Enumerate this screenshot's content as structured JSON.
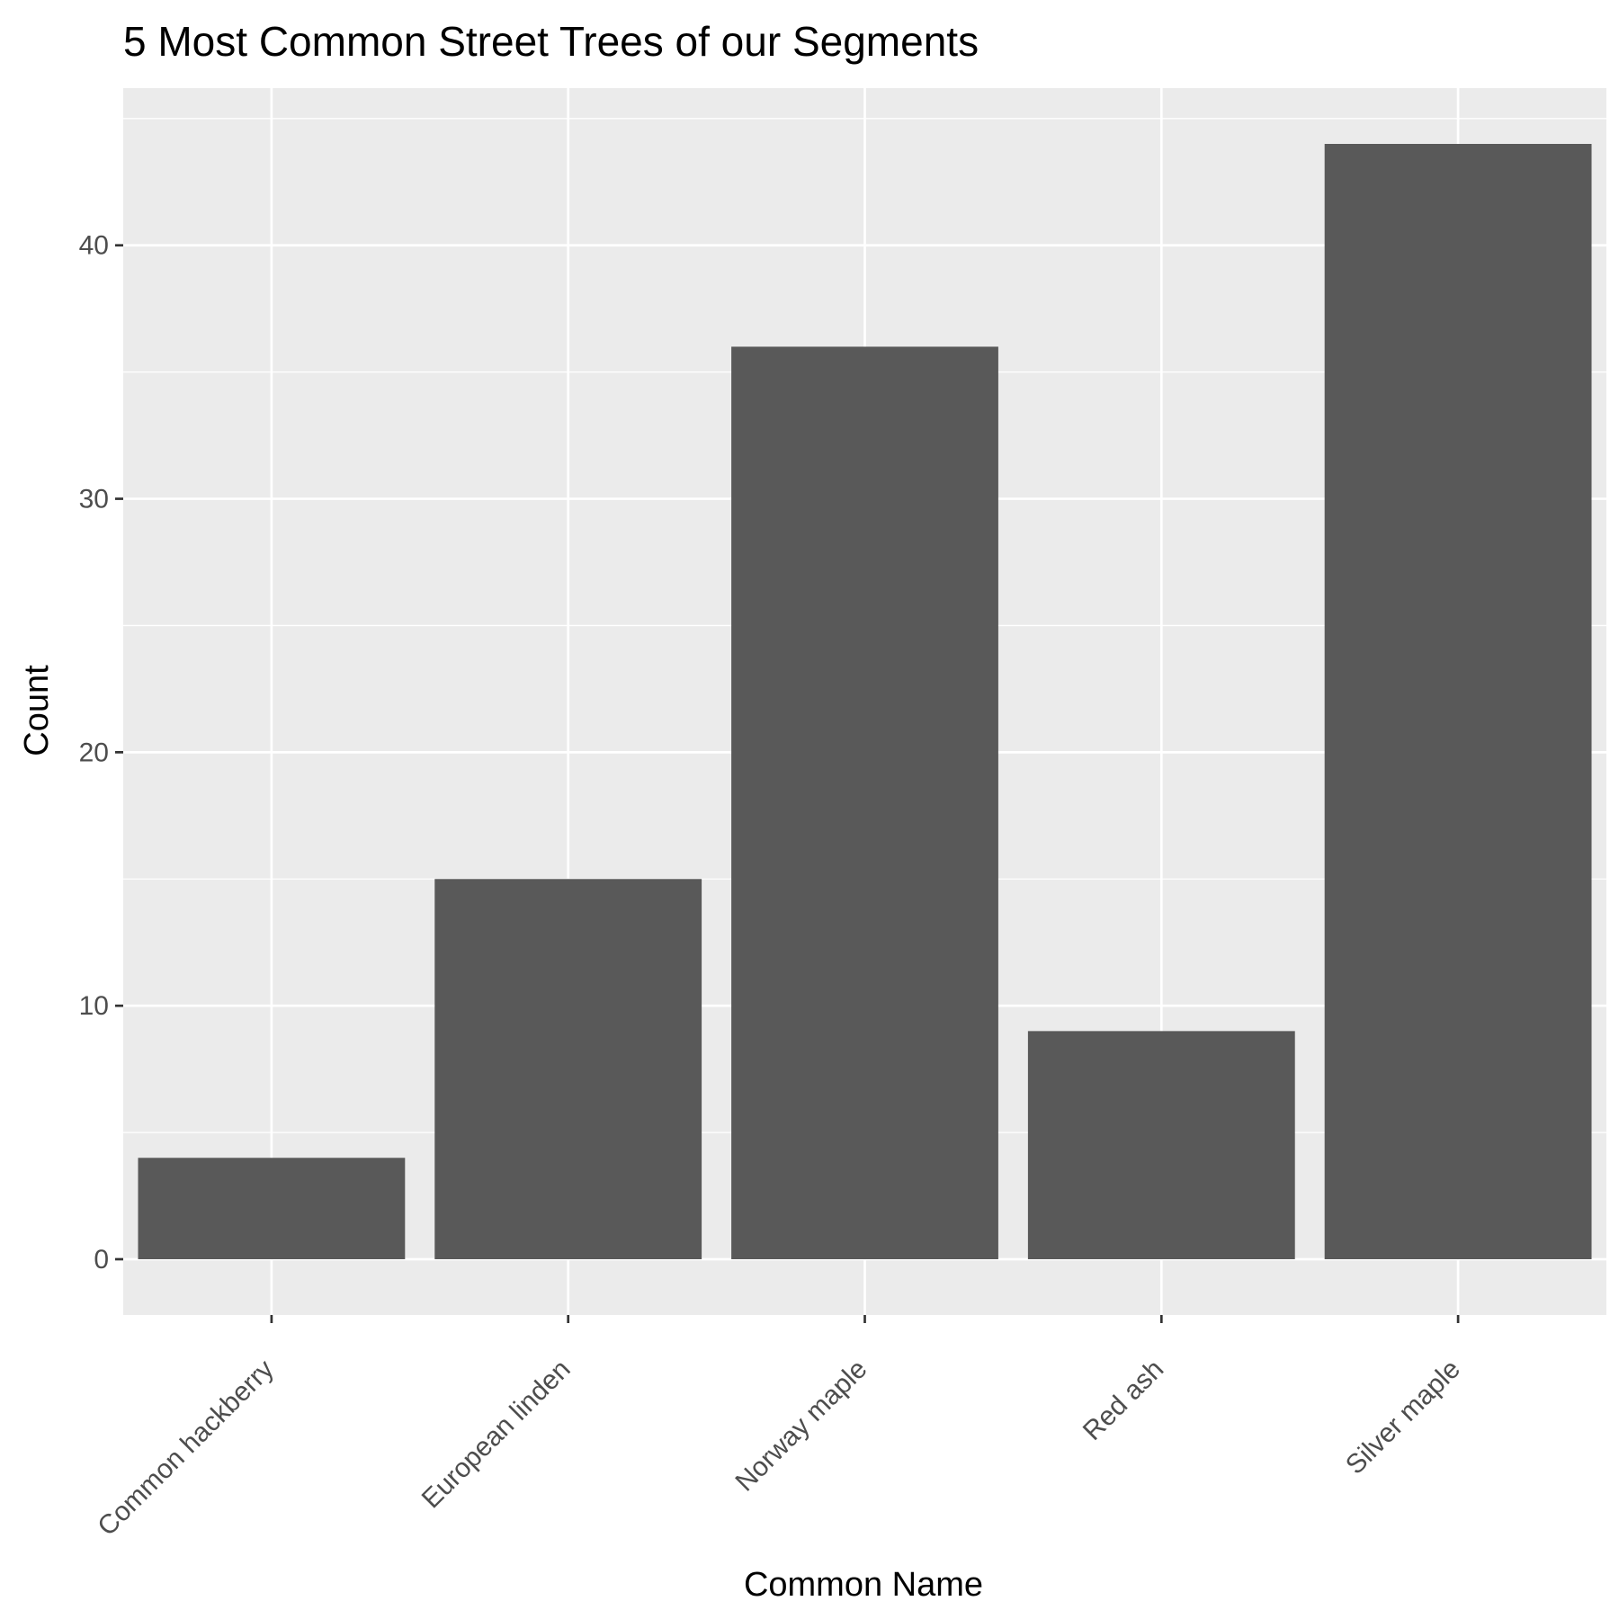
{
  "chart_data": {
    "type": "bar",
    "title": "5 Most Common Street Trees of our Segments",
    "xlabel": "Common Name",
    "ylabel": "Count",
    "categories": [
      "Common hackberry",
      "European linden",
      "Norway maple",
      "Red ash",
      "Silver maple"
    ],
    "values": [
      4,
      15,
      36,
      9,
      44
    ],
    "ylim": [
      -2.2,
      46.2
    ],
    "yticks": [
      0,
      10,
      20,
      30,
      40
    ],
    "grid": true,
    "colors": {
      "panel_background": "#ebebeb",
      "grid": "#ffffff",
      "bar": "#595959",
      "tick_text": "#4d4d4d",
      "tick_mark": "#333333",
      "text": "#000000"
    }
  }
}
